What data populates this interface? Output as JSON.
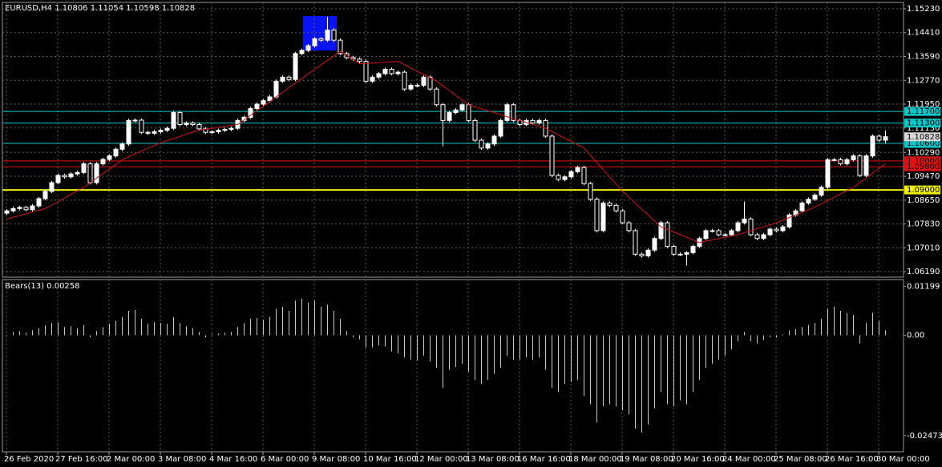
{
  "chart_data": {
    "type": "candlestick",
    "title": "EURUSD,H4  1.10806 1.11054 1.10598 1.10828",
    "bull_color": "#ffffff",
    "bear_color": "#000000",
    "candle_outline": "#ffffff",
    "open": [
      1.082,
      1.0828,
      1.0836,
      1.084,
      1.0832,
      1.0845,
      1.087,
      1.0895,
      1.0925,
      1.095,
      1.0945,
      1.0955,
      1.096,
      1.099,
      1.0925,
      1.099,
      1.1005,
      1.1017,
      1.104,
      1.1058,
      1.1139,
      1.114,
      1.1098,
      1.1095,
      1.11,
      1.1105,
      1.1112,
      1.1166,
      1.1125,
      1.113,
      1.1125,
      1.111,
      1.1098,
      1.11,
      1.1105,
      1.1108,
      1.1112,
      1.1139,
      1.115,
      1.118,
      1.1195,
      1.1207,
      1.122,
      1.1274,
      1.1288,
      1.128,
      1.1369,
      1.138,
      1.1396,
      1.142,
      1.1415,
      1.145,
      1.1415,
      1.1369,
      1.1355,
      1.135,
      1.1342,
      1.1274,
      1.1288,
      1.13,
      1.1315,
      1.13,
      1.1305,
      1.1247,
      1.126,
      1.126,
      1.1288,
      1.1247,
      1.1193,
      1.1139,
      1.1166,
      1.1175,
      1.1193,
      1.1139,
      1.1071,
      1.1044,
      1.1058,
      1.1085,
      1.1139,
      1.1193,
      1.1139,
      1.1125,
      1.1139,
      1.113,
      1.1139,
      1.1085,
      1.095,
      1.0936,
      1.0945,
      1.0963,
      1.0977,
      1.0922,
      1.0868,
      1.076,
      1.0855,
      1.0847,
      1.0828,
      1.0787,
      1.076,
      1.0679,
      1.0673,
      1.0693,
      1.0733,
      1.0787,
      1.0706,
      1.0679,
      1.0679,
      1.0684,
      1.0706,
      1.0733,
      1.076,
      1.076,
      1.0746,
      1.0746,
      1.076,
      1.0787,
      1.08,
      1.0746,
      1.0733,
      1.0746,
      1.0765,
      1.076,
      1.0773,
      1.0814,
      1.0828,
      1.0855,
      1.0868,
      1.0882,
      1.0909,
      1.1004,
      1.1004,
      1.099,
      1.1004,
      1.1017,
      1.095,
      1.1017,
      1.1085,
      1.1071
    ],
    "high": [
      1.0834,
      1.0842,
      1.0846,
      1.0846,
      1.0851,
      1.0876,
      1.0901,
      1.0931,
      1.0956,
      1.0956,
      1.0961,
      1.0966,
      1.0996,
      1.0996,
      1.0996,
      1.1011,
      1.1023,
      1.1046,
      1.1064,
      1.1145,
      1.1146,
      1.1146,
      1.1104,
      1.1106,
      1.1111,
      1.1118,
      1.1172,
      1.1172,
      1.1136,
      1.1136,
      1.1131,
      1.1116,
      1.1106,
      1.1111,
      1.1114,
      1.1118,
      1.1145,
      1.1156,
      1.1186,
      1.1201,
      1.1213,
      1.1226,
      1.128,
      1.1294,
      1.1294,
      1.1375,
      1.1386,
      1.1402,
      1.1426,
      1.1426,
      1.1495,
      1.1456,
      1.1421,
      1.1375,
      1.1361,
      1.1356,
      1.1348,
      1.1294,
      1.1306,
      1.1321,
      1.1321,
      1.1311,
      1.1311,
      1.1266,
      1.1266,
      1.1294,
      1.1294,
      1.1253,
      1.1199,
      1.1172,
      1.1181,
      1.1199,
      1.1199,
      1.1145,
      1.1077,
      1.1064,
      1.1091,
      1.1145,
      1.1199,
      1.1199,
      1.1145,
      1.1145,
      1.1145,
      1.1145,
      1.1145,
      1.1091,
      1.0956,
      1.0951,
      1.0969,
      1.0983,
      1.0983,
      1.0928,
      1.0874,
      1.0861,
      1.0861,
      1.0853,
      1.0834,
      1.0793,
      1.0766,
      1.0685,
      1.0699,
      1.0739,
      1.0793,
      1.0793,
      1.0712,
      1.0685,
      1.069,
      1.0712,
      1.0739,
      1.0766,
      1.0766,
      1.0766,
      1.0752,
      1.0766,
      1.0793,
      1.086,
      1.0806,
      1.0752,
      1.0752,
      1.0771,
      1.0771,
      1.0779,
      1.082,
      1.0834,
      1.0861,
      1.0874,
      1.0888,
      1.0915,
      1.101,
      1.101,
      1.101,
      1.101,
      1.1023,
      1.1023,
      1.1023,
      1.1091,
      1.1091,
      1.1105
    ],
    "low": [
      1.0814,
      1.0822,
      1.083,
      1.0826,
      1.0826,
      1.0839,
      1.0864,
      1.0889,
      1.0919,
      1.0939,
      1.0939,
      1.0949,
      1.0954,
      1.0919,
      1.0919,
      1.0984,
      1.0999,
      1.1011,
      1.1034,
      1.1052,
      1.1133,
      1.1092,
      1.1089,
      1.1089,
      1.1094,
      1.1099,
      1.1106,
      1.1119,
      1.1119,
      1.1119,
      1.1104,
      1.1092,
      1.1092,
      1.1094,
      1.1099,
      1.1102,
      1.1106,
      1.1133,
      1.1144,
      1.1174,
      1.1189,
      1.1201,
      1.1214,
      1.1268,
      1.1274,
      1.1274,
      1.1363,
      1.1374,
      1.139,
      1.1409,
      1.1409,
      1.1409,
      1.1363,
      1.1349,
      1.1344,
      1.1336,
      1.1268,
      1.1268,
      1.1282,
      1.1294,
      1.1294,
      1.1294,
      1.1241,
      1.1241,
      1.1254,
      1.1254,
      1.1241,
      1.1187,
      1.105,
      1.1133,
      1.116,
      1.1169,
      1.1133,
      1.1065,
      1.1038,
      1.1038,
      1.1052,
      1.1079,
      1.1133,
      1.1133,
      1.1119,
      1.1119,
      1.1124,
      1.1124,
      1.1079,
      1.0944,
      1.093,
      1.093,
      1.0939,
      1.0957,
      1.0916,
      1.0862,
      1.0754,
      1.0754,
      1.0841,
      1.0822,
      1.0781,
      1.0754,
      1.0673,
      1.0667,
      1.0667,
      1.0687,
      1.0727,
      1.07,
      1.0673,
      1.0673,
      1.064,
      1.0678,
      1.07,
      1.0727,
      1.0754,
      1.074,
      1.074,
      1.074,
      1.0754,
      1.0781,
      1.074,
      1.0727,
      1.0727,
      1.074,
      1.0754,
      1.0754,
      1.0767,
      1.0808,
      1.0822,
      1.0849,
      1.0862,
      1.0876,
      1.0903,
      1.0998,
      1.0984,
      1.0984,
      1.0998,
      1.0944,
      1.0944,
      1.1011,
      1.1065,
      1.106
    ],
    "close": [
      1.0828,
      1.0836,
      1.084,
      1.0832,
      1.0845,
      1.087,
      1.0895,
      1.0925,
      1.095,
      1.0945,
      1.0955,
      1.096,
      1.099,
      1.0925,
      1.099,
      1.1005,
      1.1017,
      1.104,
      1.1058,
      1.1139,
      1.114,
      1.1098,
      1.1095,
      1.11,
      1.1105,
      1.1112,
      1.1166,
      1.1125,
      1.113,
      1.1125,
      1.111,
      1.1098,
      1.11,
      1.1105,
      1.1108,
      1.1112,
      1.1139,
      1.115,
      1.118,
      1.1195,
      1.1207,
      1.122,
      1.1274,
      1.1288,
      1.128,
      1.1369,
      1.138,
      1.1396,
      1.142,
      1.1415,
      1.145,
      1.1415,
      1.1369,
      1.1355,
      1.135,
      1.1342,
      1.1274,
      1.1288,
      1.13,
      1.1315,
      1.13,
      1.1305,
      1.1247,
      1.126,
      1.126,
      1.1288,
      1.1247,
      1.1193,
      1.1139,
      1.1166,
      1.1175,
      1.1193,
      1.1139,
      1.1071,
      1.1044,
      1.1058,
      1.1085,
      1.1139,
      1.1193,
      1.1139,
      1.1125,
      1.1139,
      1.113,
      1.1139,
      1.1085,
      1.095,
      1.0936,
      1.0945,
      1.0963,
      1.0977,
      1.0922,
      1.0868,
      1.076,
      1.0855,
      1.0847,
      1.0828,
      1.0787,
      1.076,
      1.0679,
      1.0673,
      1.0693,
      1.0733,
      1.0787,
      1.0706,
      1.0679,
      1.0679,
      1.0684,
      1.0706,
      1.0733,
      1.076,
      1.076,
      1.0746,
      1.0746,
      1.076,
      1.0787,
      1.08,
      1.0746,
      1.0733,
      1.0746,
      1.0765,
      1.076,
      1.0773,
      1.0814,
      1.0828,
      1.0855,
      1.0868,
      1.0882,
      1.0909,
      1.1004,
      1.1004,
      1.099,
      1.1004,
      1.1017,
      1.095,
      1.1017,
      1.1085,
      1.1071,
      1.1083
    ],
    "ma": {
      "color": "#d01010",
      "values": [
        1.08,
        1.0806,
        1.0812,
        1.0818,
        1.0824,
        1.083,
        1.0836,
        1.0848,
        1.086,
        1.0872,
        1.0885,
        1.0897,
        1.0909,
        1.0925,
        1.0941,
        1.0957,
        1.0972,
        1.0988,
        1.1004,
        1.1014,
        1.1024,
        1.1034,
        1.1043,
        1.1053,
        1.1063,
        1.107,
        1.1077,
        1.1084,
        1.1092,
        1.1099,
        1.1106,
        1.1109,
        1.1112,
        1.1115,
        1.1119,
        1.1122,
        1.1125,
        1.1141,
        1.1157,
        1.1173,
        1.1188,
        1.1204,
        1.122,
        1.1236,
        1.1252,
        1.1268,
        1.1283,
        1.1299,
        1.1315,
        1.133,
        1.1346,
        1.1361,
        1.1377,
        1.1363,
        1.1348,
        1.1334,
        1.1335,
        1.1336,
        1.1338,
        1.1339,
        1.1341,
        1.1342,
        1.1331,
        1.1319,
        1.1308,
        1.1297,
        1.1285,
        1.1274,
        1.1258,
        1.1242,
        1.1225,
        1.1209,
        1.1193,
        1.1186,
        1.1179,
        1.1172,
        1.1166,
        1.1159,
        1.1152,
        1.1145,
        1.1139,
        1.1132,
        1.1125,
        1.1119,
        1.1112,
        1.1101,
        1.1089,
        1.1078,
        1.1067,
        1.1055,
        1.1044,
        1.1019,
        1.0994,
        1.0969,
        1.0945,
        1.092,
        1.0895,
        1.0875,
        1.0854,
        1.0834,
        1.0814,
        1.0793,
        1.0773,
        1.0764,
        1.0755,
        1.0746,
        1.0737,
        1.0728,
        1.0719,
        1.0724,
        1.0728,
        1.0733,
        1.0737,
        1.0742,
        1.0746,
        1.0753,
        1.076,
        1.0767,
        1.0773,
        1.078,
        1.0787,
        1.0796,
        1.0805,
        1.0814,
        1.0823,
        1.0832,
        1.0841,
        1.0852,
        1.0864,
        1.0875,
        1.0886,
        1.0898,
        1.0909,
        1.0925,
        1.0941,
        1.0958,
        1.0974,
        1.099
      ]
    },
    "levels": [
      {
        "value": 1.117,
        "label": "1.11700",
        "color": "#00c8c8"
      },
      {
        "value": 1.113,
        "label": "1.11300",
        "color": "#00c8c8"
      },
      {
        "value": 1.106,
        "label": "1.10600",
        "color": "#00c8c8"
      },
      {
        "value": 1.1,
        "label": "1.10000",
        "color": "#e01010"
      },
      {
        "value": 1.098,
        "label": "1.09800",
        "color": "#e01010"
      },
      {
        "value": 1.09,
        "label": "1.09000",
        "color": "#f0f000"
      }
    ],
    "current": {
      "value": 1.10828,
      "color": "#d8d8d8"
    },
    "ylim": [
      1.06,
      1.1545
    ],
    "yticks": [
      {
        "value": 1.1523,
        "label": "1.15230"
      },
      {
        "value": 1.1441,
        "label": "1.14410"
      },
      {
        "value": 1.1359,
        "label": "1.13590"
      },
      {
        "value": 1.1277,
        "label": "1.12770"
      },
      {
        "value": 1.1195,
        "label": "1.11950"
      },
      {
        "value": 1.1113,
        "label": "1.11130"
      },
      {
        "value": 1.1029,
        "label": "1.10290"
      },
      {
        "value": 1.0947,
        "label": "1.09470"
      },
      {
        "value": 1.0865,
        "label": "1.08650"
      },
      {
        "value": 1.0783,
        "label": "1.07830"
      },
      {
        "value": 1.0701,
        "label": "1.07010"
      },
      {
        "value": 1.0619,
        "label": "1.06190"
      }
    ],
    "grid": true,
    "time_labels": [
      "26 Feb 2020",
      "27 Feb 16:00",
      "2 Mar 00:00",
      "3 Mar 08:00",
      "4 Mar 16:00",
      "6 Mar 00:00",
      "9 Mar 08:00",
      "10 Mar 16:00",
      "12 Mar 00:00",
      "13 Mar 08:00",
      "16 Mar 16:00",
      "18 Mar 00:00",
      "19 Mar 08:00",
      "20 Mar 16:00",
      "24 Mar 00:00",
      "25 Mar 08:00",
      "26 Mar 16:00",
      "30 Mar 00:00"
    ],
    "indicator": {
      "title": "Bears(13) 0.00258",
      "color": "#c8c8c8",
      "ylim": [
        -0.0285,
        0.0135
      ],
      "yticks": [
        0.01199,
        {
          "value": 0,
          "label": "0.00"
        },
        -0.02473
      ],
      "values": [
        -0.0002,
        0.0008,
        0.001,
        0.0006,
        0.0012,
        0.0018,
        0.0024,
        0.003,
        0.0032,
        0.002,
        0.0022,
        0.0018,
        0.0025,
        -0.0005,
        0.001,
        0.002,
        0.0028,
        0.0035,
        0.0045,
        0.006,
        0.0062,
        0.004,
        0.0028,
        0.0032,
        0.003,
        0.0028,
        0.0045,
        0.003,
        0.0022,
        0.0018,
        0.0008,
        -0.0005,
        0.0002,
        0.0004,
        0.0006,
        0.0008,
        0.002,
        0.003,
        0.004,
        0.0042,
        0.0038,
        0.0045,
        0.0065,
        0.007,
        0.006,
        0.0085,
        0.009,
        0.008,
        0.0085,
        0.007,
        0.0075,
        0.006,
        0.004,
        0.001,
        -0.0005,
        -0.001,
        -0.003,
        -0.003,
        -0.0025,
        -0.0028,
        -0.004,
        -0.0045,
        -0.0055,
        -0.006,
        -0.0062,
        -0.005,
        -0.0065,
        -0.008,
        -0.013,
        -0.0085,
        -0.0078,
        -0.007,
        -0.009,
        -0.011,
        -0.012,
        -0.011,
        -0.0095,
        -0.008,
        -0.005,
        -0.006,
        -0.006,
        -0.0055,
        -0.006,
        -0.0055,
        -0.0085,
        -0.013,
        -0.014,
        -0.012,
        -0.0115,
        -0.011,
        -0.015,
        -0.017,
        -0.0215,
        -0.0175,
        -0.017,
        -0.0175,
        -0.0185,
        -0.0195,
        -0.023,
        -0.024,
        -0.022,
        -0.018,
        -0.014,
        -0.017,
        -0.0175,
        -0.016,
        -0.017,
        -0.014,
        -0.011,
        -0.008,
        -0.007,
        -0.006,
        -0.005,
        -0.0035,
        -0.0015,
        0.0008,
        -0.0015,
        -0.002,
        -0.0012,
        -0.0005,
        -0.0006,
        0.0002,
        0.0012,
        0.0015,
        0.002,
        0.0025,
        0.003,
        0.004,
        0.0065,
        0.007,
        0.006,
        0.0055,
        0.005,
        -0.002,
        0.003,
        0.0055,
        0.0035,
        0.0012
      ]
    }
  }
}
